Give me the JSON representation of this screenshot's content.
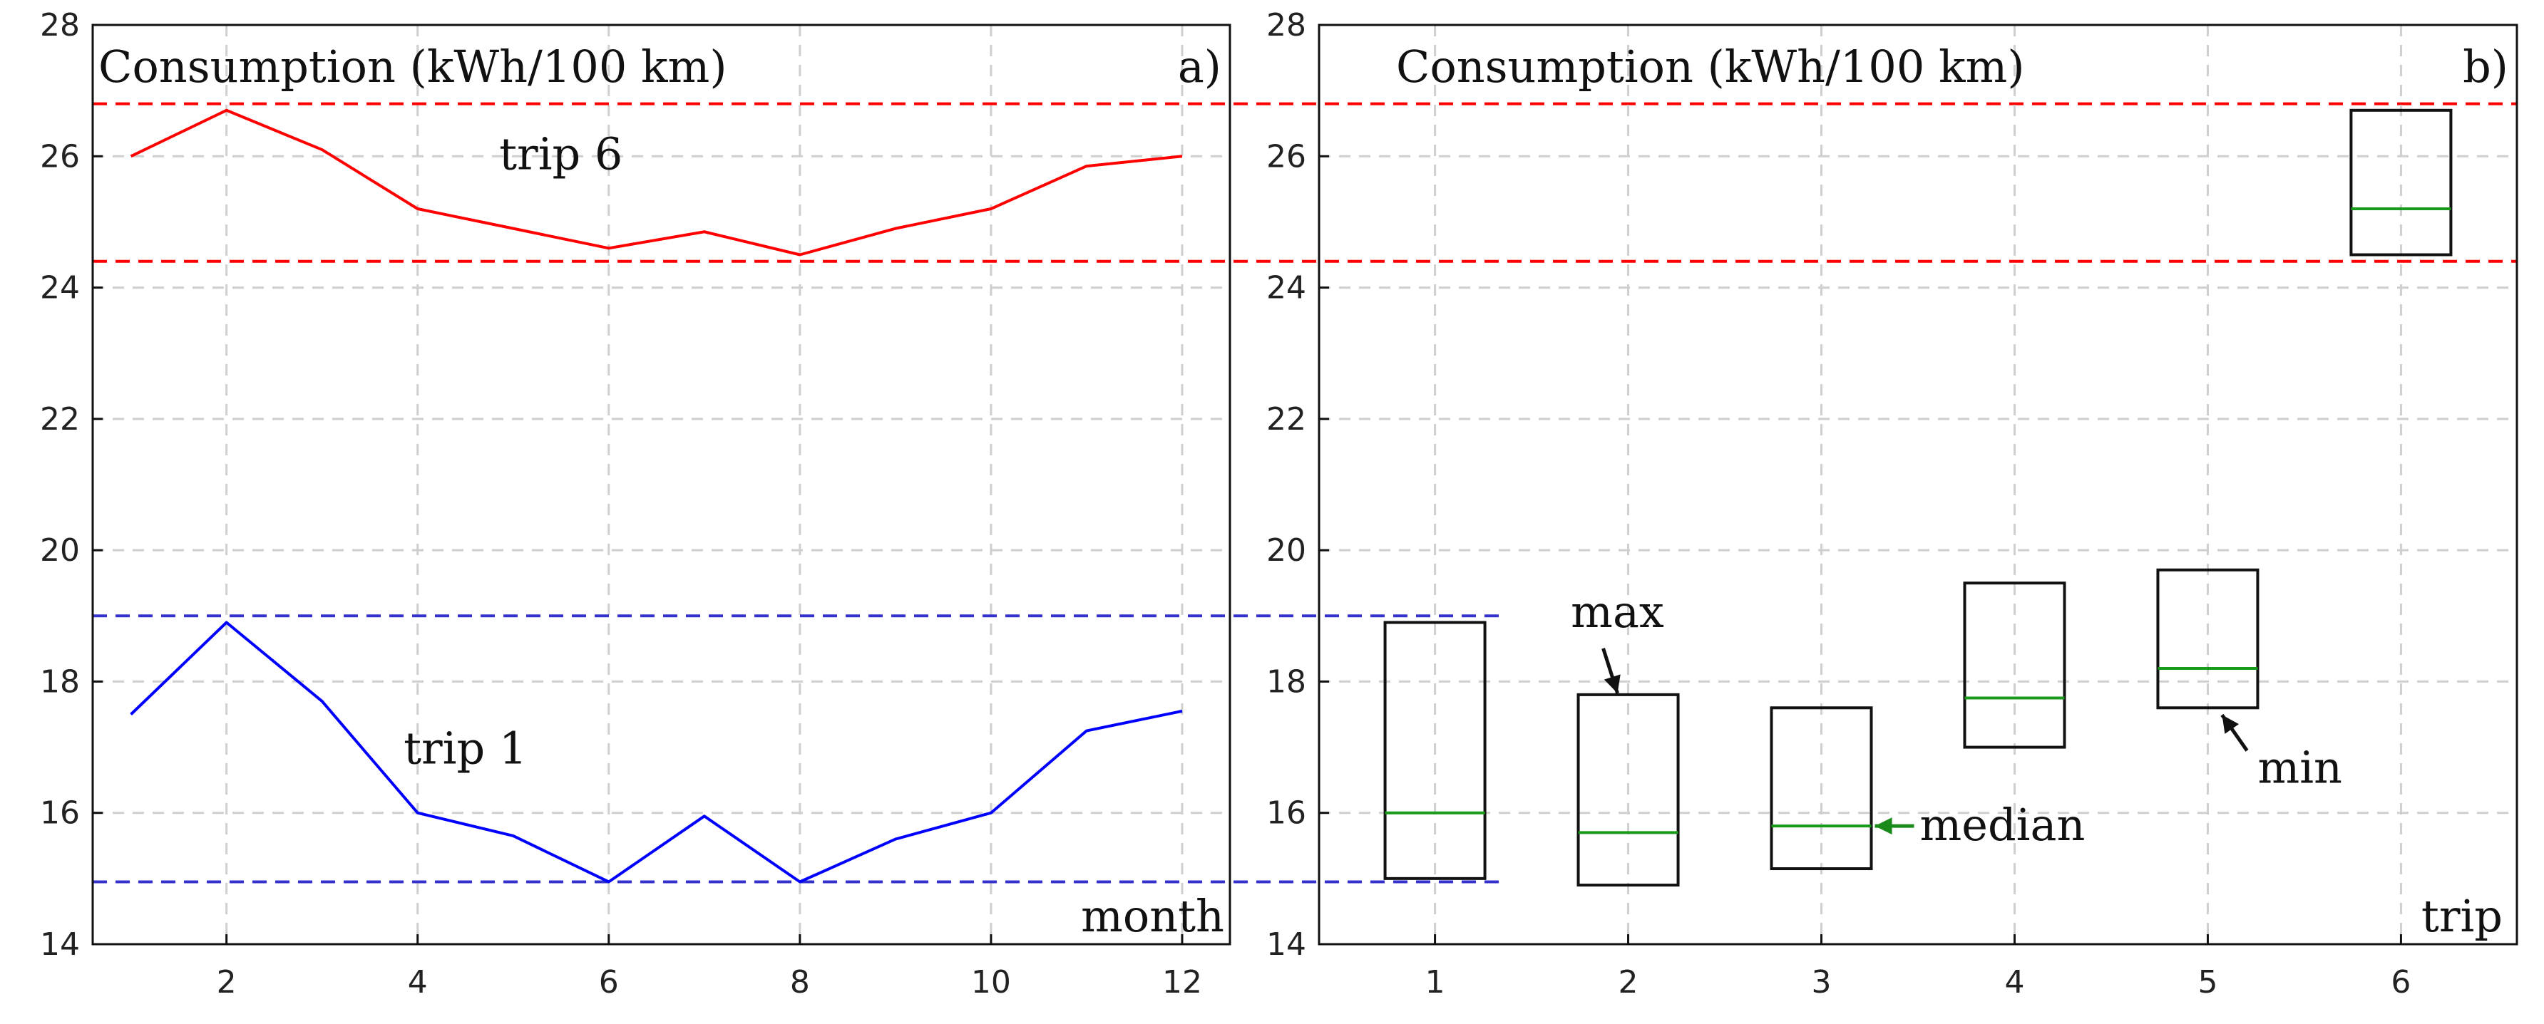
{
  "chart_data": [
    {
      "panel": "a)",
      "type": "line",
      "title": "Consumption (kWh/100 km)",
      "xlabel": "month",
      "ylabel": "",
      "xlim": [
        0.6,
        12.5
      ],
      "ylim": [
        14,
        28
      ],
      "x_ticks": [
        2,
        4,
        6,
        8,
        10,
        12
      ],
      "y_ticks": [
        14,
        16,
        18,
        20,
        22,
        24,
        26,
        28
      ],
      "grid": true,
      "x": [
        1,
        2,
        3,
        4,
        5,
        6,
        7,
        8,
        9,
        10,
        11,
        12
      ],
      "series": [
        {
          "name": "trip 6",
          "color": "#ff0000",
          "values": [
            26.0,
            26.7,
            26.1,
            25.2,
            24.9,
            24.6,
            24.85,
            24.5,
            24.9,
            25.2,
            25.85,
            26.0
          ]
        },
        {
          "name": "trip 1",
          "color": "#0000ff",
          "values": [
            17.5,
            18.9,
            17.7,
            16.0,
            15.65,
            14.95,
            15.95,
            14.95,
            15.6,
            16.0,
            17.25,
            17.55
          ]
        }
      ],
      "reference_lines": [
        {
          "y": 26.8,
          "color": "#ff0000"
        },
        {
          "y": 24.4,
          "color": "#ff0000"
        },
        {
          "y": 19.0,
          "color": "#3333cc"
        },
        {
          "y": 14.95,
          "color": "#3333cc"
        }
      ]
    },
    {
      "panel": "b)",
      "type": "box",
      "title": "Consumption (kWh/100 km)",
      "xlabel": "trip",
      "ylabel": "",
      "xlim": [
        0.4,
        6.6
      ],
      "ylim": [
        14,
        28
      ],
      "x_ticks": [
        1,
        2,
        3,
        4,
        5,
        6
      ],
      "y_ticks": [
        14,
        16,
        18,
        20,
        22,
        24,
        26,
        28
      ],
      "grid": true,
      "boxes": [
        {
          "trip": 1,
          "min": 15.0,
          "median": 16.0,
          "max": 18.9
        },
        {
          "trip": 2,
          "min": 14.9,
          "median": 15.7,
          "max": 17.8
        },
        {
          "trip": 3,
          "min": 15.15,
          "median": 15.8,
          "max": 17.6
        },
        {
          "trip": 4,
          "min": 17.0,
          "median": 17.75,
          "max": 19.5
        },
        {
          "trip": 5,
          "min": 17.6,
          "median": 18.2,
          "max": 19.7
        },
        {
          "trip": 6,
          "min": 24.5,
          "median": 25.2,
          "max": 26.7
        }
      ],
      "annotations": {
        "max": "max",
        "min": "min",
        "median": "median"
      }
    }
  ]
}
